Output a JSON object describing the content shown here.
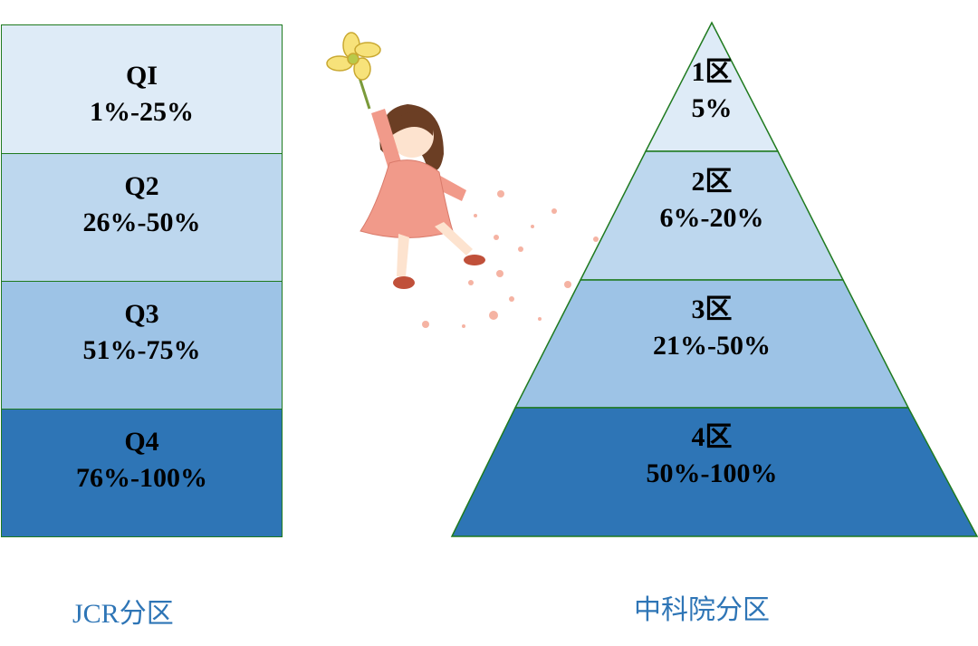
{
  "jcr": {
    "caption": "JCR分区",
    "bands": [
      {
        "name": "QI",
        "range": "1%-25%",
        "color": "#DEEBF7"
      },
      {
        "name": "Q2",
        "range": "26%-50%",
        "color": "#BDD7EE"
      },
      {
        "name": "Q3",
        "range": "51%-75%",
        "color": "#9DC3E6"
      },
      {
        "name": "Q4",
        "range": "76%-100%",
        "color": "#2E75B6"
      }
    ]
  },
  "cas": {
    "caption": "中科院分区",
    "tiers": [
      {
        "name": "1区",
        "range": "5%",
        "color": "#DEEBF7"
      },
      {
        "name": "2区",
        "range": "6%-20%",
        "color": "#BDD7EE"
      },
      {
        "name": "3区",
        "range": "21%-50%",
        "color": "#9DC3E6"
      },
      {
        "name": "4区",
        "range": "50%-100%",
        "color": "#2E75B6"
      }
    ]
  },
  "colors": {
    "border": "#1F7A1F",
    "caption": "#2E75B6"
  },
  "illustration": "girl-with-flower-pinwheel"
}
